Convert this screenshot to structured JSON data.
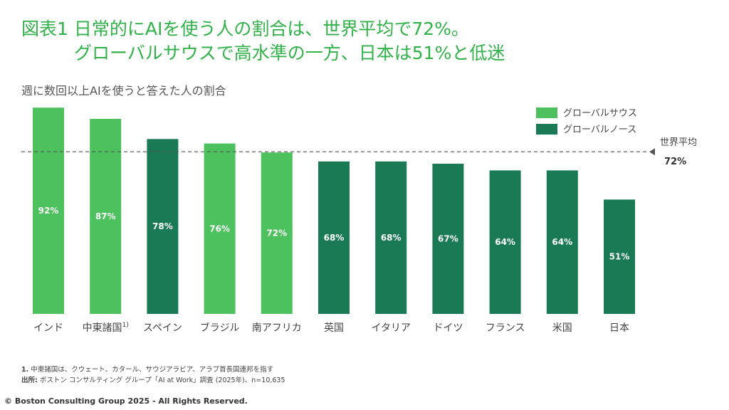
{
  "title": {
    "line1": "図表1 日常的にAIを使う人の割合は、世界平均で72%。",
    "line2": "グローバルサウスで高水準の一方、日本は51%と低迷"
  },
  "subtitle": "週に数回以上AIを使うと答えた人の割合",
  "chart_data": {
    "type": "bar",
    "categories": [
      "インド",
      "中東諸国",
      "スペイン",
      "ブラジル",
      "南アフリカ",
      "英国",
      "イタリア",
      "ドイツ",
      "フランス",
      "米国",
      "日本"
    ],
    "category_superscripts": [
      "",
      "1)",
      "",
      "",
      "",
      "",
      "",
      "",
      "",
      "",
      ""
    ],
    "values": [
      92,
      87,
      78,
      76,
      72,
      68,
      68,
      67,
      64,
      64,
      51
    ],
    "value_labels": [
      "92%",
      "87%",
      "78%",
      "76%",
      "72%",
      "68%",
      "68%",
      "67%",
      "64%",
      "64%",
      "51%"
    ],
    "groups": [
      "グローバルサウス",
      "グローバルサウス",
      "グローバルノース",
      "グローバルサウス",
      "グローバルサウス",
      "グローバルノース",
      "グローバルノース",
      "グローバルノース",
      "グローバルノース",
      "グローバルノース",
      "グローバルノース"
    ],
    "legend": [
      {
        "name": "グローバルサウス",
        "color": "#4cc15d"
      },
      {
        "name": "グローバルノース",
        "color": "#197a55"
      }
    ],
    "legend_position": "top-right",
    "reference_line": {
      "value": 72,
      "label": "世界平均",
      "value_label": "72%"
    },
    "ylim": [
      0,
      100
    ],
    "grid": false
  },
  "footnotes": {
    "note1_marker": "1.",
    "note1": "中東諸国は、クウェート、カタール、サウジアラビア、アラブ首長国連邦を指す",
    "source_label": "出所:",
    "source": "ボストン コンサルティング グループ「AI at Work」調査 (2025年)、n=10,635"
  },
  "copyright": "© Boston Consulting Group 2025 - All Rights Reserved."
}
